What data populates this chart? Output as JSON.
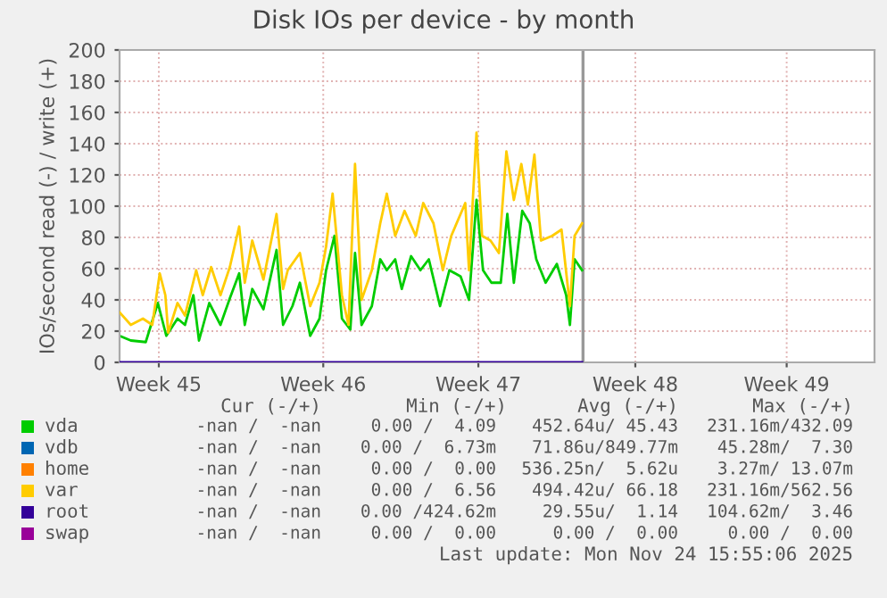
{
  "chart_data": {
    "type": "line",
    "title": "Disk IOs per device - by month",
    "ylabel": "IOs/second read (-) / write (+)",
    "xlim": [
      "2025-11-04T00:00",
      "2025-12-07T16:00"
    ],
    "xticks": [
      {
        "value": "2025-11-05T18:00",
        "label": "Week 45"
      },
      {
        "value": "2025-11-13T02:00",
        "label": "Week 46"
      },
      {
        "value": "2025-11-20T00:00",
        "label": "Week 47"
      },
      {
        "value": "2025-11-27T00:00",
        "label": "Week 48"
      },
      {
        "value": "2025-12-03T18:00",
        "label": "Week 49"
      }
    ],
    "ylim": [
      0,
      200
    ],
    "yticks": [
      0,
      20,
      40,
      60,
      80,
      100,
      120,
      140,
      160,
      180,
      200
    ],
    "grid": true,
    "legend": "bottom",
    "marker": "none",
    "line_style": "solid",
    "ref_lines": [
      {
        "axis": "x",
        "value": "2025-11-24T16:00",
        "color": "#999999"
      }
    ],
    "series": [
      {
        "name": "vda",
        "color": "#00cc00",
        "x": [
          "2025-11-04T00:00",
          "2025-11-04T12:00",
          "2025-11-05T04:00",
          "2025-11-05T17:00",
          "2025-11-06T02:00",
          "2025-11-06T14:00",
          "2025-11-06T22:00",
          "2025-11-07T07:00",
          "2025-11-07T13:00",
          "2025-11-08T00:00",
          "2025-11-08T12:00",
          "2025-11-08T22:00",
          "2025-11-09T08:00",
          "2025-11-09T14:00",
          "2025-11-09T22:00",
          "2025-11-10T10:00",
          "2025-11-11T00:00",
          "2025-11-11T07:00",
          "2025-11-11T17:00",
          "2025-11-12T01:00",
          "2025-11-12T12:00",
          "2025-11-12T22:00",
          "2025-11-13T05:00",
          "2025-11-13T14:00",
          "2025-11-13T22:00",
          "2025-11-14T07:00",
          "2025-11-14T12:00",
          "2025-11-14T19:00",
          "2025-11-15T06:00",
          "2025-11-15T15:00",
          "2025-11-15T22:00",
          "2025-11-16T07:00",
          "2025-11-16T14:00",
          "2025-11-17T00:00",
          "2025-11-17T10:00",
          "2025-11-17T19:00",
          "2025-11-18T07:00",
          "2025-11-18T17:00",
          "2025-11-19T05:00",
          "2025-11-19T14:00",
          "2025-11-19T22:00",
          "2025-11-20T05:00",
          "2025-11-20T14:00",
          "2025-11-21T00:00",
          "2025-11-21T07:00",
          "2025-11-21T14:00",
          "2025-11-21T23:00",
          "2025-11-22T07:00",
          "2025-11-22T14:00",
          "2025-11-23T00:00",
          "2025-11-23T12:00",
          "2025-11-23T22:00",
          "2025-11-24T02:00",
          "2025-11-24T07:00",
          "2025-11-24T15:00"
        ],
        "values": [
          17,
          14,
          13,
          38,
          17,
          28,
          24,
          43,
          14,
          38,
          24,
          41,
          57,
          24,
          47,
          34,
          72,
          24,
          36,
          51,
          17,
          28,
          59,
          81,
          28,
          21,
          70,
          24,
          36,
          66,
          59,
          66,
          47,
          68,
          59,
          66,
          36,
          59,
          55,
          40,
          104,
          59,
          51,
          51,
          95,
          51,
          97,
          89,
          66,
          51,
          63,
          43,
          24,
          66,
          59
        ]
      },
      {
        "name": "vdb",
        "color": "#0066b3"
      },
      {
        "name": "home",
        "color": "#ff8000"
      },
      {
        "name": "var",
        "color": "#ffcc00",
        "x": [
          "2025-11-04T00:00",
          "2025-11-04T12:00",
          "2025-11-05T01:00",
          "2025-11-05T11:00",
          "2025-11-05T19:00",
          "2025-11-06T01:00",
          "2025-11-06T04:00",
          "2025-11-06T14:00",
          "2025-11-06T22:00",
          "2025-11-07T10:00",
          "2025-11-07T17:00",
          "2025-11-08T02:00",
          "2025-11-08T12:00",
          "2025-11-08T22:00",
          "2025-11-09T08:00",
          "2025-11-09T14:00",
          "2025-11-09T22:00",
          "2025-11-10T10:00",
          "2025-11-11T00:00",
          "2025-11-11T07:00",
          "2025-11-11T12:00",
          "2025-11-12T01:00",
          "2025-11-12T12:00",
          "2025-11-12T22:00",
          "2025-11-13T05:00",
          "2025-11-13T12:00",
          "2025-11-13T22:00",
          "2025-11-14T05:00",
          "2025-11-14T12:00",
          "2025-11-14T19:00",
          "2025-11-15T06:00",
          "2025-11-15T15:00",
          "2025-11-15T22:00",
          "2025-11-16T07:00",
          "2025-11-16T17:00",
          "2025-11-17T05:00",
          "2025-11-17T13:00",
          "2025-11-18T00:00",
          "2025-11-18T10:00",
          "2025-11-18T19:00",
          "2025-11-19T10:00",
          "2025-11-19T14:00",
          "2025-11-19T22:00",
          "2025-11-20T04:00",
          "2025-11-20T13:00",
          "2025-11-20T22:00",
          "2025-11-21T06:00",
          "2025-11-21T14:00",
          "2025-11-21T22:00",
          "2025-11-22T05:00",
          "2025-11-22T12:00",
          "2025-11-22T19:00",
          "2025-11-23T07:00",
          "2025-11-23T17:00",
          "2025-11-24T02:00",
          "2025-11-24T07:00",
          "2025-11-24T15:00"
        ],
        "values": [
          32,
          24,
          28,
          24,
          57,
          43,
          19,
          38,
          30,
          59,
          43,
          61,
          43,
          61,
          87,
          51,
          78,
          53,
          95,
          47,
          59,
          70,
          36,
          51,
          74,
          108,
          43,
          24,
          127,
          40,
          59,
          89,
          108,
          81,
          97,
          81,
          102,
          89,
          59,
          81,
          102,
          59,
          147,
          81,
          78,
          70,
          135,
          104,
          127,
          101,
          133,
          78,
          81,
          85,
          36,
          81,
          89
        ]
      },
      {
        "name": "root",
        "color": "#330099",
        "x": [
          "2025-11-04T00:00",
          "2025-11-24T15:00"
        ],
        "values": [
          0,
          0
        ]
      },
      {
        "name": "swap",
        "color": "#990099"
      }
    ],
    "annotations": [
      "Cur (-/+)",
      "Min (-/+)",
      "Avg (-/+)",
      "Max (-/+)",
      "-nan /  -nan",
      "0.00 /  4.09",
      "452.64u/ 45.43",
      "231.16m/432.09",
      "-nan /  -nan",
      "0.00 /  6.73m",
      "71.86u/849.77m",
      "45.28m/  7.30",
      "-nan /  -nan",
      "0.00 /  0.00",
      "536.25n/  5.62u",
      "3.27m/ 13.07m",
      "-nan /  -nan",
      "0.00 /  6.56",
      "494.42u/ 66.18",
      "231.16m/562.56",
      "-nan /  -nan",
      "0.00 /424.62m",
      "29.55u/  1.14",
      "104.62m/  3.46",
      "-nan /  -nan",
      "0.00 /  0.00",
      "0.00 /  0.00",
      "0.00 /  0.00",
      "Last update: Mon Nov 24 15:55:06 2025"
    ]
  }
}
